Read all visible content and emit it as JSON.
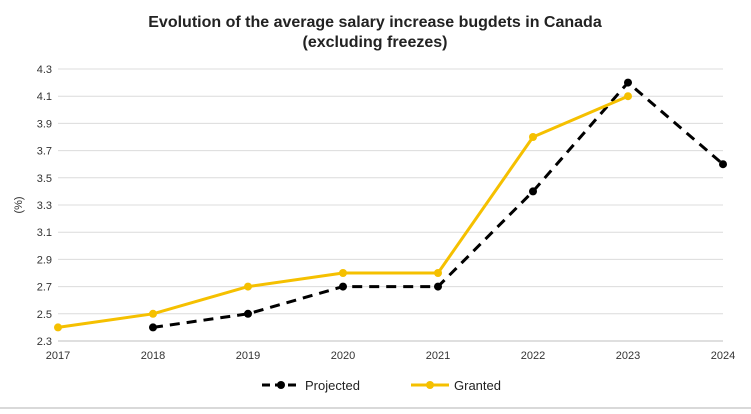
{
  "chart_data": {
    "type": "line",
    "title": "Evolution of the average salary increase bugdets in Canada",
    "subtitle": "(excluding freezes)",
    "xlabel": "",
    "ylabel": "(%)",
    "categories": [
      "2017",
      "2018",
      "2019",
      "2020",
      "2021",
      "2022",
      "2023",
      "2024"
    ],
    "y_ticks": [
      "4.3",
      "4.1",
      "3.9",
      "3.7",
      "3.5",
      "3.3",
      "3.1",
      "2.9",
      "2.7",
      "2.5",
      "2.3"
    ],
    "ylim": [
      2.3,
      4.3
    ],
    "grid": true,
    "legend_position": "bottom",
    "series": [
      {
        "name": "Projected",
        "values": [
          null,
          2.4,
          2.5,
          2.7,
          2.7,
          3.4,
          4.2,
          3.6
        ],
        "color": "#000000",
        "dash": true
      },
      {
        "name": "Granted",
        "values": [
          2.4,
          2.5,
          2.7,
          2.8,
          2.8,
          3.8,
          4.1,
          null
        ],
        "color": "#f5c000",
        "dash": false
      }
    ]
  }
}
